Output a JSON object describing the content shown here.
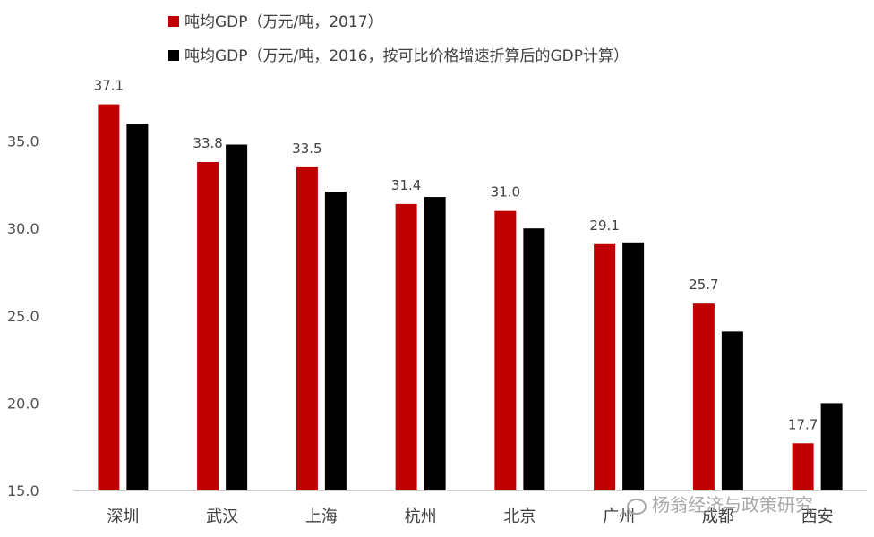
{
  "chart_data": {
    "type": "bar",
    "categories": [
      "深圳",
      "武汉",
      "上海",
      "杭州",
      "北京",
      "广州",
      "成都",
      "西安"
    ],
    "series": [
      {
        "name": "吨均GDP（万元/吨，2017）",
        "color": "#c00000",
        "values": [
          37.1,
          33.8,
          33.5,
          31.4,
          31.0,
          29.1,
          25.7,
          17.7
        ],
        "labels": [
          "37.1",
          "33.8",
          "33.5",
          "31.4",
          "31.0",
          "29.1",
          "25.7",
          "17.7"
        ]
      },
      {
        "name": "吨均GDP（万元/吨，2016，按可比价格增速折算后的GDP计算）",
        "color": "#000000",
        "values": [
          36.0,
          34.8,
          32.1,
          31.8,
          30.0,
          29.2,
          24.1,
          20.0
        ]
      }
    ],
    "yticks": [
      "15.0",
      "20.0",
      "25.0",
      "30.0",
      "35.0"
    ],
    "ylim": [
      15,
      40
    ],
    "legend_position": "top-left",
    "grid": false
  },
  "watermark": "杨翁经济与政策研究"
}
